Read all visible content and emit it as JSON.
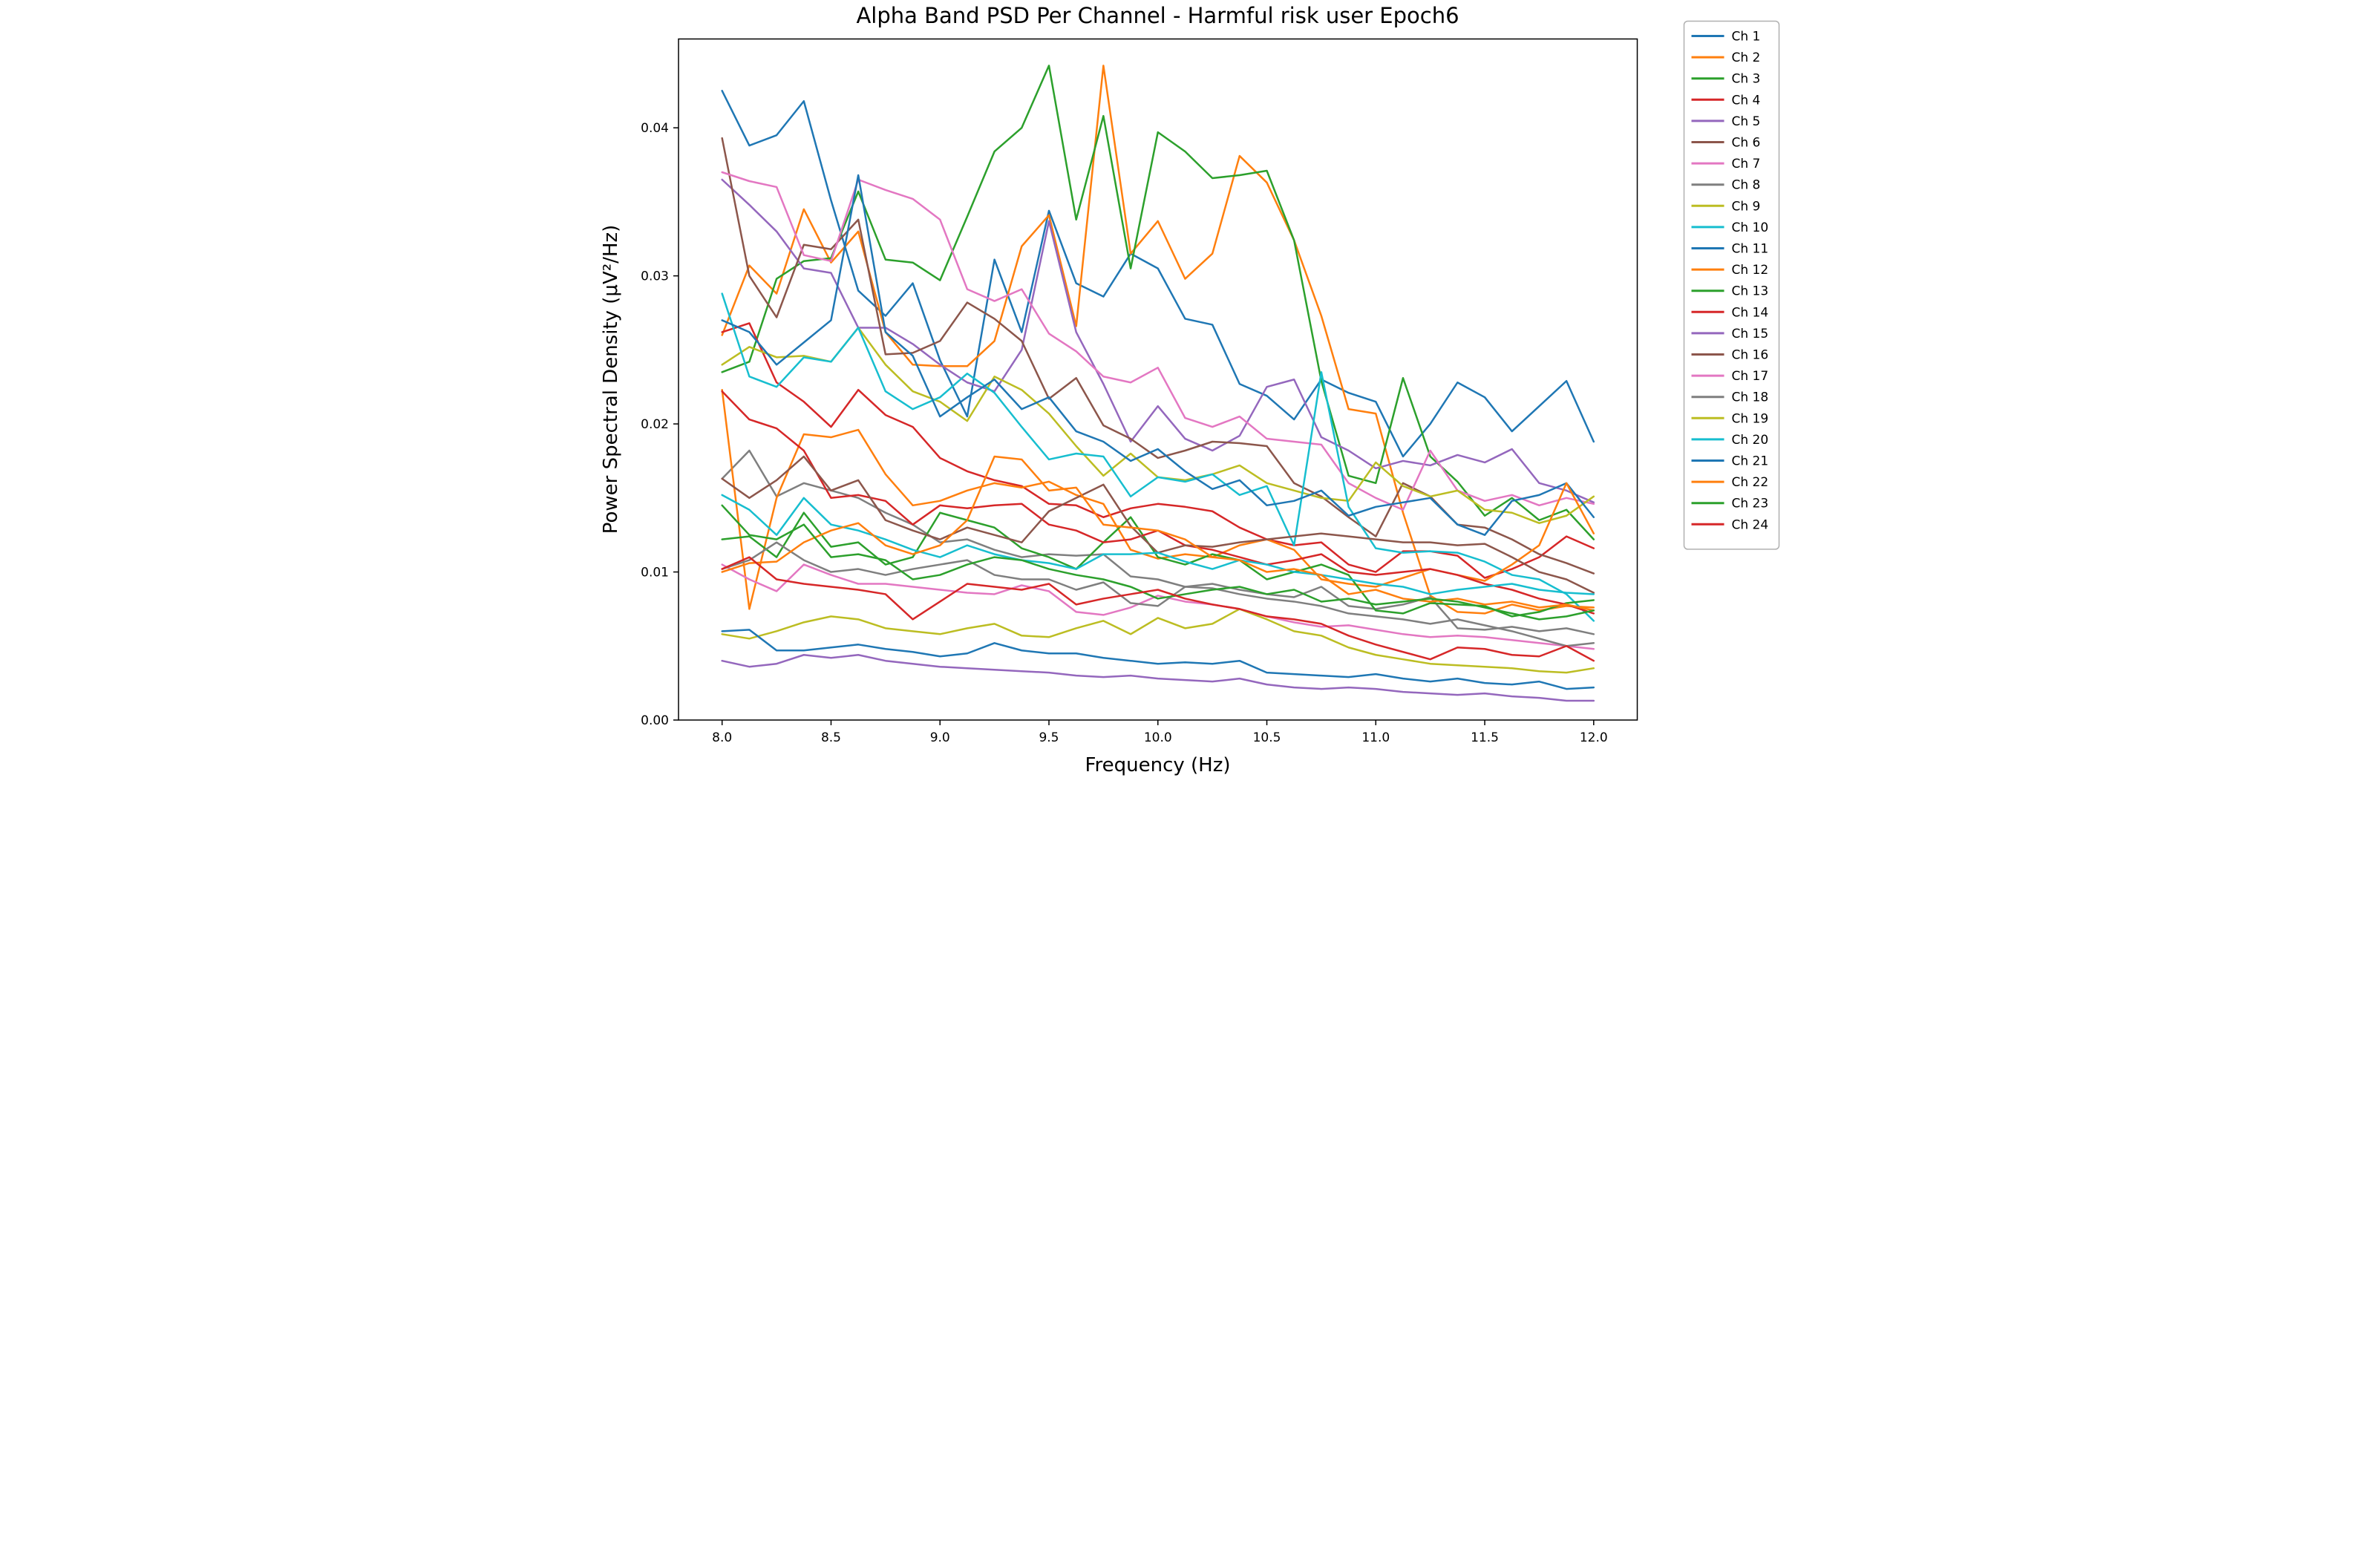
{
  "figure": {
    "background_color": "#ffffff",
    "spine_color": "#000000",
    "legend_border_color": "#b0b0b0"
  },
  "chart_data": {
    "type": "line",
    "title": "Alpha Band PSD Per Channel - Harmful risk user Epoch6",
    "xlabel": "Frequency (Hz)",
    "ylabel": "Power Spectral Density (μV²/Hz)",
    "xlim": [
      7.8,
      12.2
    ],
    "ylim": [
      0,
      0.046
    ],
    "grid": false,
    "legend_position": "right-outside",
    "xticks": [
      8.0,
      8.5,
      9.0,
      9.5,
      10.0,
      10.5,
      11.0,
      11.5,
      12.0
    ],
    "xtick_labels": [
      "8.0",
      "8.5",
      "9.0",
      "9.5",
      "10.0",
      "10.5",
      "11.0",
      "11.5",
      "12.0"
    ],
    "yticks": [
      0.0,
      0.01,
      0.02,
      0.03,
      0.04
    ],
    "ytick_labels": [
      "0.00",
      "0.01",
      "0.02",
      "0.03",
      "0.04"
    ],
    "x": [
      8.0,
      8.125,
      8.25,
      8.375,
      8.5,
      8.625,
      8.75,
      8.875,
      9.0,
      9.125,
      9.25,
      9.375,
      9.5,
      9.625,
      9.75,
      9.875,
      10.0,
      10.125,
      10.25,
      10.375,
      10.5,
      10.625,
      10.75,
      10.875,
      11.0,
      11.125,
      11.25,
      11.375,
      11.5,
      11.625,
      11.75,
      11.875,
      12.0
    ],
    "series": [
      {
        "name": "Ch 1",
        "color": "#1f77b4",
        "values": [
          0.0425,
          0.0388,
          0.0395,
          0.0418,
          0.0351,
          0.029,
          0.0273,
          0.0295,
          0.0243,
          0.0205,
          0.0311,
          0.0262,
          0.0344,
          0.0295,
          0.0286,
          0.0315,
          0.0305,
          0.0271,
          0.0267,
          0.0227,
          0.0219,
          0.0203,
          0.023,
          0.0221,
          0.0215,
          0.0178,
          0.02,
          0.0228,
          0.0218,
          0.0195,
          0.0212,
          0.0229,
          0.0188
        ]
      },
      {
        "name": "Ch 2",
        "color": "#ff7f0e",
        "values": [
          0.026,
          0.0307,
          0.0288,
          0.0345,
          0.0309,
          0.033,
          0.0262,
          0.024,
          0.0239,
          0.0239,
          0.0256,
          0.032,
          0.0341,
          0.0266,
          0.0442,
          0.0315,
          0.0337,
          0.0298,
          0.0315,
          0.0381,
          0.0363,
          0.0324,
          0.0273,
          0.021,
          0.0207,
          0.014,
          0.0084,
          0.0073,
          0.0072,
          0.0078,
          0.0074,
          0.0077,
          0.0076
        ]
      },
      {
        "name": "Ch 3",
        "color": "#2ca02c",
        "values": [
          0.0235,
          0.0242,
          0.0298,
          0.031,
          0.0312,
          0.0357,
          0.0311,
          0.0309,
          0.0297,
          0.034,
          0.0384,
          0.04,
          0.0442,
          0.0338,
          0.0408,
          0.0305,
          0.0397,
          0.0384,
          0.0366,
          0.0368,
          0.0371,
          0.0324,
          0.0229,
          0.0165,
          0.016,
          0.0231,
          0.0178,
          0.0161,
          0.0138,
          0.015,
          0.0135,
          0.0142,
          0.0122
        ]
      },
      {
        "name": "Ch 4",
        "color": "#d62728",
        "values": [
          0.0262,
          0.0268,
          0.0228,
          0.0215,
          0.0198,
          0.0223,
          0.0206,
          0.0198,
          0.0177,
          0.0168,
          0.0162,
          0.0158,
          0.0146,
          0.0145,
          0.0137,
          0.0143,
          0.0146,
          0.0144,
          0.0141,
          0.013,
          0.0122,
          0.0118,
          0.012,
          0.0105,
          0.01,
          0.0114,
          0.0114,
          0.0111,
          0.0096,
          0.0102,
          0.011,
          0.0124,
          0.0116
        ]
      },
      {
        "name": "Ch 5",
        "color": "#9467bd",
        "values": [
          0.0365,
          0.0348,
          0.033,
          0.0305,
          0.0302,
          0.0265,
          0.0265,
          0.0254,
          0.024,
          0.0228,
          0.0222,
          0.025,
          0.0337,
          0.0262,
          0.0227,
          0.0188,
          0.0212,
          0.019,
          0.0182,
          0.0192,
          0.0225,
          0.023,
          0.0191,
          0.0182,
          0.017,
          0.0175,
          0.0172,
          0.0179,
          0.0174,
          0.0183,
          0.016,
          0.0155,
          0.0147
        ]
      },
      {
        "name": "Ch 6",
        "color": "#8c564b",
        "values": [
          0.0393,
          0.03,
          0.0272,
          0.0321,
          0.0318,
          0.0338,
          0.0247,
          0.0248,
          0.0256,
          0.0282,
          0.0271,
          0.0256,
          0.0217,
          0.0231,
          0.0199,
          0.019,
          0.0177,
          0.0182,
          0.0188,
          0.0187,
          0.0185,
          0.016,
          0.0151,
          0.0137,
          0.0124,
          0.016,
          0.0151,
          0.0132,
          0.013,
          0.0122,
          0.0112,
          0.0106,
          0.0099
        ]
      },
      {
        "name": "Ch 7",
        "color": "#e377c2",
        "values": [
          0.037,
          0.0364,
          0.036,
          0.0314,
          0.031,
          0.0365,
          0.0358,
          0.0352,
          0.0338,
          0.0291,
          0.0283,
          0.0291,
          0.0261,
          0.0249,
          0.0232,
          0.0228,
          0.0238,
          0.0204,
          0.0198,
          0.0205,
          0.019,
          0.0188,
          0.0186,
          0.016,
          0.015,
          0.0142,
          0.0182,
          0.0155,
          0.0148,
          0.0152,
          0.0145,
          0.015,
          0.0146
        ]
      },
      {
        "name": "Ch 8",
        "color": "#7f7f7f",
        "values": [
          0.0163,
          0.0182,
          0.0151,
          0.016,
          0.0155,
          0.015,
          0.014,
          0.0132,
          0.012,
          0.0122,
          0.0115,
          0.011,
          0.0112,
          0.0111,
          0.0112,
          0.0097,
          0.0095,
          0.009,
          0.0092,
          0.0088,
          0.0085,
          0.0083,
          0.009,
          0.0077,
          0.0075,
          0.0078,
          0.0083,
          0.0062,
          0.0061,
          0.0063,
          0.006,
          0.0062,
          0.0058
        ]
      },
      {
        "name": "Ch 9",
        "color": "#bcbd22",
        "values": [
          0.024,
          0.0252,
          0.0245,
          0.0246,
          0.0242,
          0.0265,
          0.024,
          0.0222,
          0.0215,
          0.0202,
          0.0232,
          0.0223,
          0.0207,
          0.0185,
          0.0165,
          0.018,
          0.0164,
          0.0162,
          0.0166,
          0.0172,
          0.016,
          0.0155,
          0.015,
          0.0148,
          0.0174,
          0.0158,
          0.0151,
          0.0155,
          0.0142,
          0.014,
          0.0133,
          0.0138,
          0.0151
        ]
      },
      {
        "name": "Ch 10",
        "color": "#17becf",
        "values": [
          0.0288,
          0.0232,
          0.0225,
          0.0245,
          0.0242,
          0.0265,
          0.0222,
          0.021,
          0.0218,
          0.0234,
          0.0221,
          0.0198,
          0.0176,
          0.018,
          0.0178,
          0.0151,
          0.0164,
          0.0161,
          0.0166,
          0.0152,
          0.0158,
          0.0118,
          0.0235,
          0.0144,
          0.0116,
          0.0113,
          0.0114,
          0.0113,
          0.0107,
          0.0098,
          0.0095,
          0.0085,
          0.0067
        ]
      },
      {
        "name": "Ch 11",
        "color": "#1f77b4",
        "values": [
          0.027,
          0.0262,
          0.024,
          0.0255,
          0.027,
          0.0368,
          0.0262,
          0.0246,
          0.0205,
          0.0218,
          0.023,
          0.021,
          0.0218,
          0.0195,
          0.0188,
          0.0175,
          0.0183,
          0.0168,
          0.0156,
          0.0162,
          0.0145,
          0.0148,
          0.0155,
          0.0138,
          0.0144,
          0.0147,
          0.015,
          0.0132,
          0.0125,
          0.0148,
          0.0152,
          0.016,
          0.0137
        ]
      },
      {
        "name": "Ch 12",
        "color": "#ff7f0e",
        "values": [
          0.0223,
          0.0075,
          0.015,
          0.0193,
          0.0191,
          0.0196,
          0.0166,
          0.0145,
          0.0148,
          0.0155,
          0.016,
          0.0157,
          0.0161,
          0.0152,
          0.0146,
          0.0115,
          0.0109,
          0.0112,
          0.011,
          0.0118,
          0.0122,
          0.0115,
          0.0095,
          0.0092,
          0.009,
          0.0096,
          0.0102,
          0.0098,
          0.0094,
          0.0105,
          0.0118,
          0.016,
          0.0126
        ]
      },
      {
        "name": "Ch 13",
        "color": "#2ca02c",
        "values": [
          0.0122,
          0.0124,
          0.011,
          0.014,
          0.0117,
          0.012,
          0.0105,
          0.011,
          0.014,
          0.0135,
          0.013,
          0.0116,
          0.011,
          0.0102,
          0.012,
          0.0137,
          0.011,
          0.0105,
          0.0112,
          0.0108,
          0.0095,
          0.01,
          0.0105,
          0.0098,
          0.0074,
          0.0072,
          0.0079,
          0.0078,
          0.0077,
          0.007,
          0.0073,
          0.0079,
          0.0081
        ]
      },
      {
        "name": "Ch 14",
        "color": "#d62728",
        "values": [
          0.0222,
          0.0203,
          0.0197,
          0.0182,
          0.015,
          0.0152,
          0.0148,
          0.0132,
          0.0145,
          0.0143,
          0.0145,
          0.0146,
          0.0132,
          0.0128,
          0.012,
          0.0122,
          0.0128,
          0.0118,
          0.0115,
          0.011,
          0.0105,
          0.0108,
          0.0112,
          0.01,
          0.0098,
          0.01,
          0.0102,
          0.0098,
          0.0092,
          0.0088,
          0.0082,
          0.0078,
          0.0072
        ]
      },
      {
        "name": "Ch 15",
        "color": "#9467bd",
        "values": [
          0.004,
          0.0036,
          0.0038,
          0.0044,
          0.0042,
          0.0044,
          0.004,
          0.0038,
          0.0036,
          0.0035,
          0.0034,
          0.0033,
          0.0032,
          0.003,
          0.0029,
          0.003,
          0.0028,
          0.0027,
          0.0026,
          0.0028,
          0.0024,
          0.0022,
          0.0021,
          0.0022,
          0.0021,
          0.0019,
          0.0018,
          0.0017,
          0.0018,
          0.0016,
          0.0015,
          0.0013,
          0.0013
        ]
      },
      {
        "name": "Ch 16",
        "color": "#8c564b",
        "values": [
          0.0163,
          0.015,
          0.0162,
          0.0178,
          0.0155,
          0.0162,
          0.0135,
          0.0128,
          0.0122,
          0.013,
          0.0125,
          0.012,
          0.0141,
          0.015,
          0.0159,
          0.0131,
          0.0113,
          0.0118,
          0.0117,
          0.012,
          0.0122,
          0.0124,
          0.0126,
          0.0124,
          0.0122,
          0.012,
          0.012,
          0.0118,
          0.0119,
          0.011,
          0.01,
          0.0095,
          0.0086
        ]
      },
      {
        "name": "Ch 17",
        "color": "#e377c2",
        "values": [
          0.0105,
          0.0095,
          0.0087,
          0.0105,
          0.0098,
          0.0092,
          0.0092,
          0.009,
          0.0088,
          0.0086,
          0.0085,
          0.0091,
          0.0087,
          0.0073,
          0.0071,
          0.0076,
          0.0084,
          0.008,
          0.0078,
          0.0075,
          0.007,
          0.0066,
          0.0063,
          0.0064,
          0.0061,
          0.0058,
          0.0056,
          0.0057,
          0.0056,
          0.0054,
          0.0052,
          0.005,
          0.0048
        ]
      },
      {
        "name": "Ch 18",
        "color": "#7f7f7f",
        "values": [
          0.0102,
          0.0108,
          0.012,
          0.0108,
          0.01,
          0.0102,
          0.0098,
          0.0102,
          0.0105,
          0.0108,
          0.0098,
          0.0095,
          0.0095,
          0.0088,
          0.0093,
          0.0079,
          0.0077,
          0.009,
          0.0089,
          0.0085,
          0.0082,
          0.008,
          0.0077,
          0.0072,
          0.007,
          0.0068,
          0.0065,
          0.0068,
          0.0064,
          0.006,
          0.0055,
          0.005,
          0.0052
        ]
      },
      {
        "name": "Ch 19",
        "color": "#bcbd22",
        "values": [
          0.0058,
          0.0055,
          0.006,
          0.0066,
          0.007,
          0.0068,
          0.0062,
          0.006,
          0.0058,
          0.0062,
          0.0065,
          0.0057,
          0.0056,
          0.0062,
          0.0067,
          0.0058,
          0.0069,
          0.0062,
          0.0065,
          0.0075,
          0.0068,
          0.006,
          0.0057,
          0.0049,
          0.0044,
          0.0041,
          0.0038,
          0.0037,
          0.0036,
          0.0035,
          0.0033,
          0.0032,
          0.0035
        ]
      },
      {
        "name": "Ch 20",
        "color": "#17becf",
        "values": [
          0.0152,
          0.0142,
          0.0125,
          0.015,
          0.0132,
          0.0128,
          0.0122,
          0.0115,
          0.011,
          0.0118,
          0.0112,
          0.0108,
          0.0106,
          0.0102,
          0.0112,
          0.0112,
          0.0113,
          0.0107,
          0.0102,
          0.0108,
          0.0105,
          0.01,
          0.0098,
          0.0095,
          0.0092,
          0.009,
          0.0085,
          0.0088,
          0.009,
          0.0092,
          0.0088,
          0.0086,
          0.0085
        ]
      },
      {
        "name": "Ch 21",
        "color": "#1f77b4",
        "values": [
          0.006,
          0.0061,
          0.0047,
          0.0047,
          0.0049,
          0.0051,
          0.0048,
          0.0046,
          0.0043,
          0.0045,
          0.0052,
          0.0047,
          0.0045,
          0.0045,
          0.0042,
          0.004,
          0.0038,
          0.0039,
          0.0038,
          0.004,
          0.0032,
          0.0031,
          0.003,
          0.0029,
          0.0031,
          0.0028,
          0.0026,
          0.0028,
          0.0025,
          0.0024,
          0.0026,
          0.0021,
          0.0022
        ]
      },
      {
        "name": "Ch 22",
        "color": "#ff7f0e",
        "values": [
          0.01,
          0.0106,
          0.0107,
          0.012,
          0.0128,
          0.0133,
          0.0118,
          0.0112,
          0.0118,
          0.0135,
          0.0178,
          0.0176,
          0.0155,
          0.0157,
          0.0132,
          0.013,
          0.0128,
          0.0122,
          0.011,
          0.0108,
          0.01,
          0.0102,
          0.0098,
          0.0085,
          0.0088,
          0.0082,
          0.008,
          0.0082,
          0.0078,
          0.008,
          0.0076,
          0.0078,
          0.0074
        ]
      },
      {
        "name": "Ch 23",
        "color": "#2ca02c",
        "values": [
          0.0145,
          0.0125,
          0.0122,
          0.0132,
          0.011,
          0.0112,
          0.0108,
          0.0095,
          0.0098,
          0.0105,
          0.011,
          0.0108,
          0.0102,
          0.0098,
          0.0095,
          0.009,
          0.0082,
          0.0085,
          0.0088,
          0.009,
          0.0085,
          0.0088,
          0.008,
          0.0082,
          0.0078,
          0.008,
          0.0082,
          0.008,
          0.0076,
          0.0072,
          0.0068,
          0.007,
          0.0074
        ]
      },
      {
        "name": "Ch 24",
        "color": "#d62728",
        "values": [
          0.0102,
          0.011,
          0.0095,
          0.0092,
          0.009,
          0.0088,
          0.0085,
          0.0068,
          0.008,
          0.0092,
          0.009,
          0.0088,
          0.0092,
          0.0078,
          0.0082,
          0.0085,
          0.0088,
          0.0082,
          0.0078,
          0.0075,
          0.007,
          0.0068,
          0.0065,
          0.0057,
          0.0051,
          0.0046,
          0.0041,
          0.0049,
          0.0048,
          0.0044,
          0.0043,
          0.005,
          0.004
        ]
      }
    ]
  }
}
